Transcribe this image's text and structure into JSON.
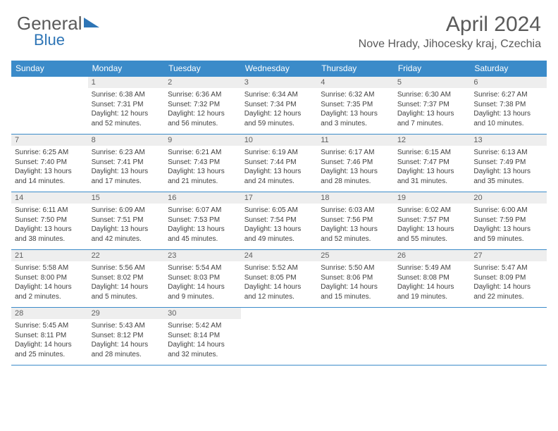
{
  "logo": {
    "text1": "General",
    "text2": "Blue"
  },
  "title": "April 2024",
  "subtitle": "Nove Hrady, Jihocesky kraj, Czechia",
  "header_bg": "#3b8bc9",
  "daynum_bg": "#eeeeee",
  "border_color": "#3b8bc9",
  "days_of_week": [
    "Sunday",
    "Monday",
    "Tuesday",
    "Wednesday",
    "Thursday",
    "Friday",
    "Saturday"
  ],
  "weeks": [
    [
      {
        "num": "",
        "sunrise": "",
        "sunset": "",
        "daylight": ""
      },
      {
        "num": "1",
        "sunrise": "6:38 AM",
        "sunset": "7:31 PM",
        "daylight": "12 hours and 52 minutes."
      },
      {
        "num": "2",
        "sunrise": "6:36 AM",
        "sunset": "7:32 PM",
        "daylight": "12 hours and 56 minutes."
      },
      {
        "num": "3",
        "sunrise": "6:34 AM",
        "sunset": "7:34 PM",
        "daylight": "12 hours and 59 minutes."
      },
      {
        "num": "4",
        "sunrise": "6:32 AM",
        "sunset": "7:35 PM",
        "daylight": "13 hours and 3 minutes."
      },
      {
        "num": "5",
        "sunrise": "6:30 AM",
        "sunset": "7:37 PM",
        "daylight": "13 hours and 7 minutes."
      },
      {
        "num": "6",
        "sunrise": "6:27 AM",
        "sunset": "7:38 PM",
        "daylight": "13 hours and 10 minutes."
      }
    ],
    [
      {
        "num": "7",
        "sunrise": "6:25 AM",
        "sunset": "7:40 PM",
        "daylight": "13 hours and 14 minutes."
      },
      {
        "num": "8",
        "sunrise": "6:23 AM",
        "sunset": "7:41 PM",
        "daylight": "13 hours and 17 minutes."
      },
      {
        "num": "9",
        "sunrise": "6:21 AM",
        "sunset": "7:43 PM",
        "daylight": "13 hours and 21 minutes."
      },
      {
        "num": "10",
        "sunrise": "6:19 AM",
        "sunset": "7:44 PM",
        "daylight": "13 hours and 24 minutes."
      },
      {
        "num": "11",
        "sunrise": "6:17 AM",
        "sunset": "7:46 PM",
        "daylight": "13 hours and 28 minutes."
      },
      {
        "num": "12",
        "sunrise": "6:15 AM",
        "sunset": "7:47 PM",
        "daylight": "13 hours and 31 minutes."
      },
      {
        "num": "13",
        "sunrise": "6:13 AM",
        "sunset": "7:49 PM",
        "daylight": "13 hours and 35 minutes."
      }
    ],
    [
      {
        "num": "14",
        "sunrise": "6:11 AM",
        "sunset": "7:50 PM",
        "daylight": "13 hours and 38 minutes."
      },
      {
        "num": "15",
        "sunrise": "6:09 AM",
        "sunset": "7:51 PM",
        "daylight": "13 hours and 42 minutes."
      },
      {
        "num": "16",
        "sunrise": "6:07 AM",
        "sunset": "7:53 PM",
        "daylight": "13 hours and 45 minutes."
      },
      {
        "num": "17",
        "sunrise": "6:05 AM",
        "sunset": "7:54 PM",
        "daylight": "13 hours and 49 minutes."
      },
      {
        "num": "18",
        "sunrise": "6:03 AM",
        "sunset": "7:56 PM",
        "daylight": "13 hours and 52 minutes."
      },
      {
        "num": "19",
        "sunrise": "6:02 AM",
        "sunset": "7:57 PM",
        "daylight": "13 hours and 55 minutes."
      },
      {
        "num": "20",
        "sunrise": "6:00 AM",
        "sunset": "7:59 PM",
        "daylight": "13 hours and 59 minutes."
      }
    ],
    [
      {
        "num": "21",
        "sunrise": "5:58 AM",
        "sunset": "8:00 PM",
        "daylight": "14 hours and 2 minutes."
      },
      {
        "num": "22",
        "sunrise": "5:56 AM",
        "sunset": "8:02 PM",
        "daylight": "14 hours and 5 minutes."
      },
      {
        "num": "23",
        "sunrise": "5:54 AM",
        "sunset": "8:03 PM",
        "daylight": "14 hours and 9 minutes."
      },
      {
        "num": "24",
        "sunrise": "5:52 AM",
        "sunset": "8:05 PM",
        "daylight": "14 hours and 12 minutes."
      },
      {
        "num": "25",
        "sunrise": "5:50 AM",
        "sunset": "8:06 PM",
        "daylight": "14 hours and 15 minutes."
      },
      {
        "num": "26",
        "sunrise": "5:49 AM",
        "sunset": "8:08 PM",
        "daylight": "14 hours and 19 minutes."
      },
      {
        "num": "27",
        "sunrise": "5:47 AM",
        "sunset": "8:09 PM",
        "daylight": "14 hours and 22 minutes."
      }
    ],
    [
      {
        "num": "28",
        "sunrise": "5:45 AM",
        "sunset": "8:11 PM",
        "daylight": "14 hours and 25 minutes."
      },
      {
        "num": "29",
        "sunrise": "5:43 AM",
        "sunset": "8:12 PM",
        "daylight": "14 hours and 28 minutes."
      },
      {
        "num": "30",
        "sunrise": "5:42 AM",
        "sunset": "8:14 PM",
        "daylight": "14 hours and 32 minutes."
      },
      {
        "num": "",
        "sunrise": "",
        "sunset": "",
        "daylight": ""
      },
      {
        "num": "",
        "sunrise": "",
        "sunset": "",
        "daylight": ""
      },
      {
        "num": "",
        "sunrise": "",
        "sunset": "",
        "daylight": ""
      },
      {
        "num": "",
        "sunrise": "",
        "sunset": "",
        "daylight": ""
      }
    ]
  ],
  "labels": {
    "sunrise": "Sunrise:",
    "sunset": "Sunset:",
    "daylight": "Daylight:"
  }
}
